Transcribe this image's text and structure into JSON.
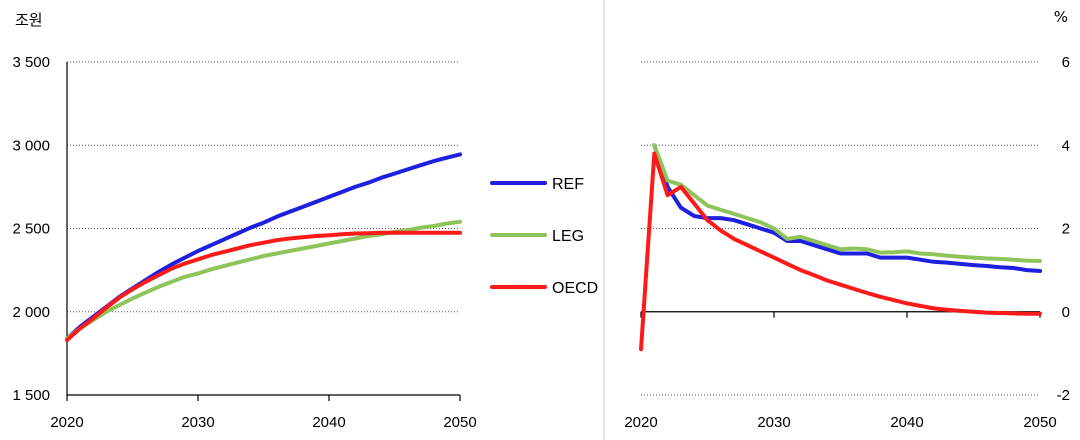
{
  "chart_data": [
    {
      "type": "line",
      "unit": "조원",
      "xlim": [
        2020,
        2050
      ],
      "ylim": [
        1500,
        3500
      ],
      "x_ticks": [
        2020,
        2030,
        2040,
        2050
      ],
      "y_ticks": [
        1500,
        2000,
        2500,
        3000,
        3500
      ],
      "y_tick_labels": [
        "1 500",
        "2 000",
        "2 500",
        "3 000",
        "3 500"
      ],
      "grid": "horizontal-dotted",
      "x": [
        2020,
        2021,
        2022,
        2023,
        2024,
        2025,
        2026,
        2027,
        2028,
        2029,
        2030,
        2031,
        2032,
        2033,
        2034,
        2035,
        2036,
        2037,
        2038,
        2039,
        2040,
        2041,
        2042,
        2043,
        2044,
        2045,
        2046,
        2047,
        2048,
        2049,
        2050
      ],
      "series": [
        {
          "name": "REF",
          "color": "#1f1fe0",
          "values": [
            1840,
            1910,
            1970,
            2030,
            2090,
            2140,
            2190,
            2240,
            2285,
            2325,
            2365,
            2400,
            2435,
            2470,
            2505,
            2535,
            2570,
            2600,
            2630,
            2660,
            2690,
            2720,
            2750,
            2775,
            2805,
            2830,
            2855,
            2880,
            2905,
            2925,
            2945
          ]
        },
        {
          "name": "LEG",
          "color": "#8fc45a",
          "values": [
            1840,
            1900,
            1950,
            2000,
            2040,
            2080,
            2115,
            2150,
            2180,
            2210,
            2230,
            2255,
            2275,
            2295,
            2315,
            2335,
            2350,
            2365,
            2380,
            2395,
            2410,
            2425,
            2440,
            2455,
            2465,
            2480,
            2490,
            2505,
            2515,
            2530,
            2540
          ]
        },
        {
          "name": "OECD",
          "color": "#ff1a1a",
          "values": [
            1830,
            1900,
            1960,
            2025,
            2085,
            2135,
            2180,
            2220,
            2260,
            2290,
            2315,
            2340,
            2360,
            2380,
            2400,
            2415,
            2430,
            2440,
            2448,
            2455,
            2460,
            2465,
            2470,
            2472,
            2474,
            2475,
            2475,
            2475,
            2475,
            2475,
            2474
          ]
        }
      ]
    },
    {
      "type": "line",
      "unit": "%",
      "xlim": [
        2020,
        2050
      ],
      "ylim": [
        -2,
        6
      ],
      "x_ticks": [
        2020,
        2030,
        2040,
        2050
      ],
      "y_ticks": [
        -2,
        0,
        2,
        4,
        6
      ],
      "y_tick_labels": [
        "-2",
        "0",
        "2",
        "4",
        "6"
      ],
      "grid": "horizontal-dotted",
      "x": [
        2020,
        2021,
        2022,
        2023,
        2024,
        2025,
        2026,
        2027,
        2028,
        2029,
        2030,
        2031,
        2032,
        2033,
        2034,
        2035,
        2036,
        2037,
        2038,
        2039,
        2040,
        2041,
        2042,
        2043,
        2044,
        2045,
        2046,
        2047,
        2048,
        2049,
        2050
      ],
      "series": [
        {
          "name": "REF",
          "color": "#1f1fe0",
          "values": [
            null,
            4.0,
            3.0,
            2.5,
            2.3,
            2.25,
            2.25,
            2.2,
            2.1,
            2.0,
            1.9,
            1.7,
            1.7,
            1.6,
            1.5,
            1.4,
            1.4,
            1.4,
            1.3,
            1.3,
            1.3,
            1.25,
            1.2,
            1.18,
            1.15,
            1.12,
            1.1,
            1.07,
            1.05,
            1.0,
            0.98
          ]
        },
        {
          "name": "LEG",
          "color": "#8fc45a",
          "values": [
            null,
            4.0,
            3.15,
            3.05,
            2.8,
            2.55,
            2.45,
            2.35,
            2.25,
            2.15,
            2.0,
            1.75,
            1.8,
            1.7,
            1.6,
            1.5,
            1.52,
            1.5,
            1.42,
            1.43,
            1.45,
            1.4,
            1.38,
            1.35,
            1.32,
            1.3,
            1.28,
            1.27,
            1.25,
            1.23,
            1.22
          ]
        },
        {
          "name": "OECD",
          "color": "#ff1a1a",
          "values": [
            -0.9,
            3.8,
            2.8,
            3.0,
            2.6,
            2.2,
            1.95,
            1.75,
            1.6,
            1.45,
            1.3,
            1.15,
            1.0,
            0.88,
            0.75,
            0.65,
            0.55,
            0.45,
            0.36,
            0.28,
            0.2,
            0.14,
            0.08,
            0.05,
            0.02,
            0.0,
            -0.02,
            -0.03,
            -0.04,
            -0.05,
            -0.05
          ]
        }
      ]
    }
  ],
  "legend": [
    {
      "name": "REF",
      "color": "#1f1fe0"
    },
    {
      "name": "LEG",
      "color": "#8fc45a"
    },
    {
      "name": "OECD",
      "color": "#ff1a1a"
    }
  ]
}
